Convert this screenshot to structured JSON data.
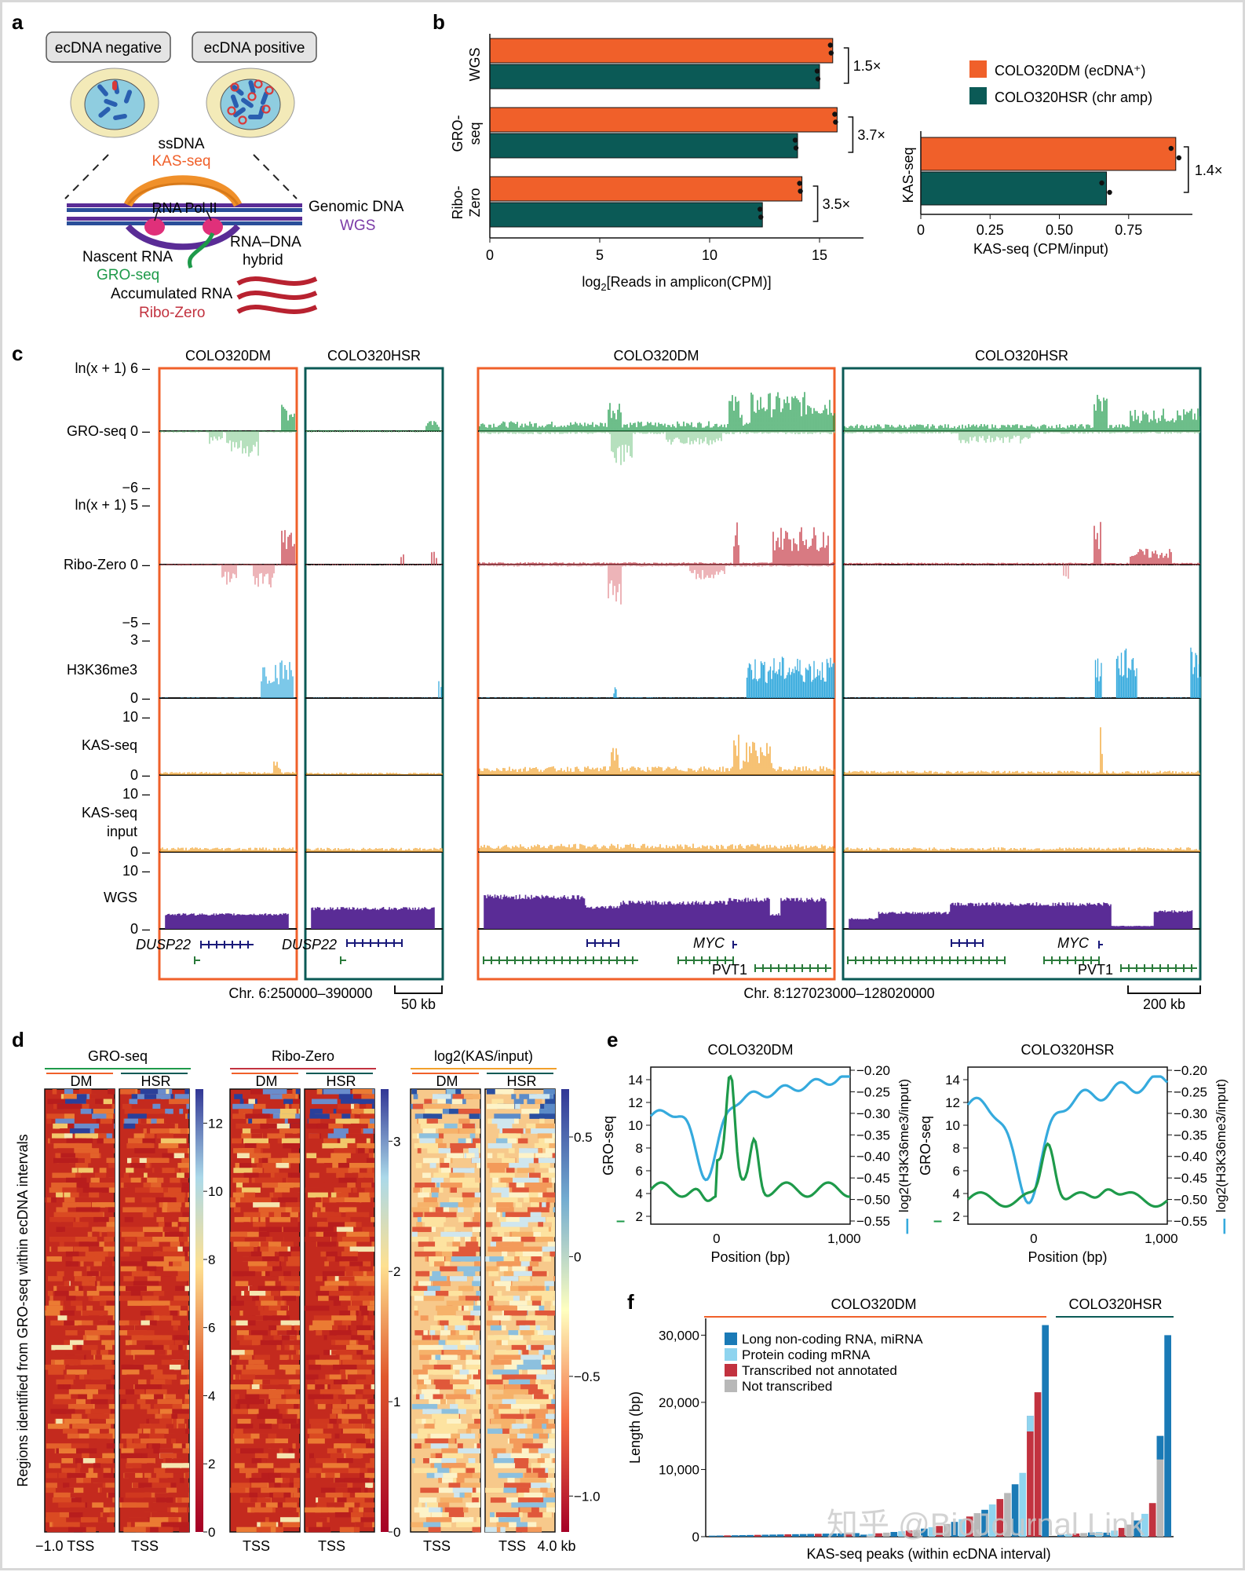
{
  "figure": {
    "panels": {
      "a": "a",
      "b": "b",
      "c": "c",
      "d": "d",
      "e": "e",
      "f": "f"
    }
  },
  "panel_a": {
    "neg_label": "ecDNA negative",
    "pos_label": "ecDNA positive",
    "ssdna": "ssDNA",
    "kas": "KAS-seq",
    "pol": "RNA Pol II",
    "genomic": "Genomic DNA",
    "wgs": "WGS",
    "hybrid1": "RNA–DNA",
    "hybrid2": "hybrid",
    "nascent": "Nascent RNA",
    "gro": "GRO-seq",
    "accum": "Accumulated RNA",
    "ribo": "Ribo-Zero"
  },
  "colors": {
    "dm": "#f0602a",
    "hsr": "#0b5a56",
    "gro": "#1e9a4a",
    "gro_light": "#8fd09a",
    "ribo": "#c2323f",
    "ribo_light": "#e38b92",
    "h3k": "#35aadd",
    "kas": "#f2a02a",
    "wgs": "#5a2c96",
    "gene": "#1a1a7a",
    "gene_green": "#2a7a3a"
  },
  "chart_data": [
    {
      "id": "b-left",
      "type": "bar",
      "orientation": "horizontal",
      "groups": [
        "WGS",
        "GRO-\nseq",
        "Ribo-\nZero"
      ],
      "group_lines": [
        [
          "WGS"
        ],
        [
          "GRO-",
          "seq"
        ],
        [
          "Ribo-",
          "Zero"
        ]
      ],
      "series": [
        {
          "name": "COLO320DM (ecDNA⁺)",
          "values": [
            15.6,
            15.8,
            14.2
          ]
        },
        {
          "name": "COLO320HSR (chr amp)",
          "values": [
            15.0,
            14.0,
            12.4
          ]
        }
      ],
      "fold": [
        "1.5×",
        "3.7×",
        "3.5×"
      ],
      "xticks": [
        0,
        5,
        10,
        15
      ],
      "xlim": [
        0,
        17
      ],
      "xlabel_pre": "log",
      "xlabel_sub": "2",
      "xlabel_post": "[Reads in amplicon(CPM)]"
    },
    {
      "id": "b-right",
      "type": "bar",
      "orientation": "horizontal",
      "groups": [
        "KAS-seq"
      ],
      "series": [
        {
          "name": "COLO320DM (ecDNA⁺)",
          "values": [
            0.92
          ]
        },
        {
          "name": "COLO320HSR (chr amp)",
          "values": [
            0.67
          ]
        }
      ],
      "fold": [
        "1.4×"
      ],
      "xticks": [
        "0",
        "0.25",
        "0.50",
        "0.75"
      ],
      "xtick_vals": [
        0,
        0.25,
        0.5,
        0.75
      ],
      "xlim": [
        0,
        0.98
      ],
      "xlabel": "KAS-seq (CPM/input)",
      "legend": [
        "COLO320DM (ecDNA⁺)",
        "COLO320HSR (chr amp)"
      ]
    },
    {
      "id": "c",
      "type": "tracks",
      "col_titles": [
        "COLO320DM",
        "COLO320HSR",
        "COLO320DM",
        "COLO320HSR"
      ],
      "rows": [
        {
          "name": "GRO-seq",
          "ticks": [
            "ln(x + 1) 6",
            "0",
            "−6"
          ]
        },
        {
          "name": "Ribo-Zero",
          "ticks": [
            "ln(x + 1) 5",
            "0",
            "−5"
          ]
        },
        {
          "name": "H3K36me3",
          "ticks": [
            "3",
            "0"
          ]
        },
        {
          "name": "KAS-seq",
          "ticks": [
            "10",
            "0"
          ]
        },
        {
          "name": "KAS-seq input",
          "ticks": [
            "10",
            "0"
          ]
        },
        {
          "name": "WGS",
          "ticks": [
            "10",
            "0"
          ]
        }
      ],
      "genes": [
        "DUSP22",
        "DUSP22",
        "MYC",
        "PVT1",
        "MYC",
        "PVT1"
      ],
      "coords": [
        "Chr. 6:250000–390000",
        "Chr. 8:127023000–128020000"
      ],
      "scales": [
        "50 kb",
        "200 kb"
      ]
    },
    {
      "id": "d",
      "type": "heatmap",
      "groups": [
        "GRO-seq",
        "Ribo-Zero",
        "log2(KAS/input)"
      ],
      "sub": [
        "DM",
        "HSR"
      ],
      "colorbars": [
        [
          "0",
          "2",
          "4",
          "6",
          "8",
          "10",
          "12"
        ],
        [
          "0",
          "1",
          "2",
          "3"
        ],
        [
          "−1.0",
          "−0.5",
          "0",
          "0.5"
        ]
      ],
      "ylabel": "Regions identified from GRO-seq within ecDNA intervals",
      "xticks": [
        "−1.0 TSS",
        "TSS",
        "TSS",
        "TSS",
        "TSS",
        "TSS",
        "4.0 kb"
      ]
    },
    {
      "id": "e",
      "type": "line",
      "panels": [
        {
          "title": "COLO320DM",
          "y1ticks": [
            "2",
            "4",
            "6",
            "8",
            "10",
            "12",
            "14"
          ],
          "y2ticks": [
            "−0.20",
            "−0.25",
            "−0.30",
            "−0.35",
            "−0.40",
            "−0.45",
            "−0.50",
            "−0.55"
          ]
        },
        {
          "title": "COLO320HSR",
          "y1ticks": [
            "2",
            "4",
            "6",
            "8",
            "10",
            "12",
            "14"
          ],
          "y2ticks": [
            "−0.20",
            "−0.25",
            "−0.30",
            "−0.35",
            "−0.40",
            "−0.45",
            "−0.50",
            "−0.55"
          ]
        }
      ],
      "xticks": [
        "0",
        "1,000"
      ],
      "xlabel": "Position (bp)",
      "y1label": "GRO-seq",
      "y2label": "log2(H3K36me3/input)"
    },
    {
      "id": "f",
      "type": "bar",
      "group_titles": [
        "COLO320DM",
        "COLO320HSR"
      ],
      "legend": [
        "Long non-coding RNA, miRNA",
        "Protein coding mRNA",
        "Transcribed not annotated",
        "Not transcribed"
      ],
      "yticks": [
        "0",
        "10,000",
        "20,000",
        "30,000"
      ],
      "ytick_vals": [
        0,
        10000,
        20000,
        30000
      ],
      "ylabel": "Length (bp)",
      "xlabel": "KAS-seq peaks (within ecDNA interval)",
      "dm_peaks": [
        300,
        400,
        500,
        600,
        700,
        800,
        900,
        1000,
        1200,
        1400,
        1600,
        1900,
        2200,
        2600,
        3000,
        3500,
        4000,
        4800,
        5600,
        6500,
        7800,
        9500,
        18000,
        21500,
        31500
      ],
      "hsr_peaks": [
        600,
        900,
        1300,
        1800,
        2400,
        3400,
        5000,
        15000,
        30000
      ]
    }
  ],
  "watermark": "知乎 @BioJournal Link"
}
